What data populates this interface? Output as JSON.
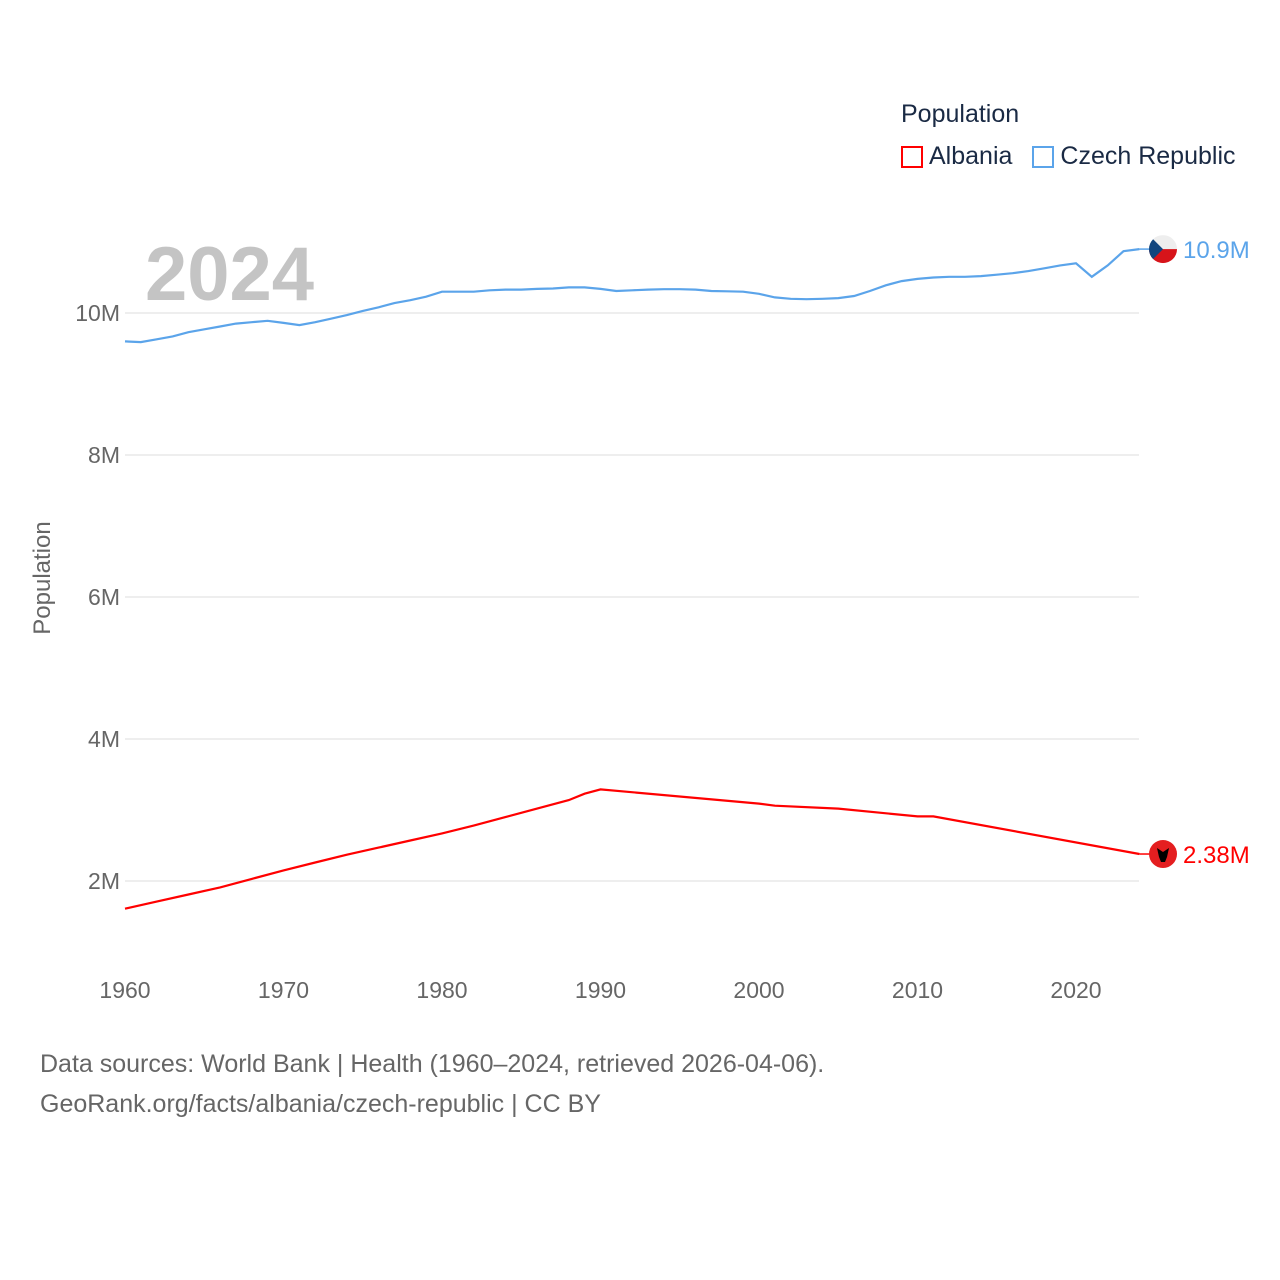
{
  "chart_data": {
    "type": "line",
    "title": "Population",
    "ylabel": "Population",
    "xlabel": "",
    "xlim": [
      1960,
      2024
    ],
    "ylim": [
      1220000,
      11000000
    ],
    "x_ticks": [
      1960,
      1970,
      1980,
      1990,
      2000,
      2010,
      2020
    ],
    "y_ticks": [
      2000000,
      4000000,
      6000000,
      8000000,
      10000000
    ],
    "y_tick_labels": [
      "2M",
      "4M",
      "6M",
      "8M",
      "10M"
    ],
    "grid": true,
    "legend_placement": "top-right",
    "year_label": "2024",
    "series": [
      {
        "name": "Albania",
        "color": "#ff0000",
        "end_label": "2.38M",
        "flag": "albania-flag",
        "x": [
          1960,
          1962,
          1964,
          1966,
          1968,
          1970,
          1972,
          1974,
          1976,
          1978,
          1980,
          1982,
          1984,
          1986,
          1988,
          1989,
          1990,
          2000,
          2001,
          2005,
          2010,
          2011,
          2024
        ],
        "values": [
          1610000,
          1710000,
          1810000,
          1910000,
          2030000,
          2150000,
          2260000,
          2370000,
          2470000,
          2570000,
          2670000,
          2780000,
          2900000,
          3020000,
          3140000,
          3230000,
          3290000,
          3090000,
          3060000,
          3020000,
          2910000,
          2910000,
          2380000
        ]
      },
      {
        "name": "Czech Republic",
        "color": "#5ba4ea",
        "end_label": "10.9M",
        "flag": "czech-flag",
        "x": [
          1960,
          1961,
          1962,
          1963,
          1964,
          1965,
          1966,
          1967,
          1968,
          1969,
          1970,
          1971,
          1972,
          1973,
          1974,
          1975,
          1976,
          1977,
          1978,
          1979,
          1980,
          1981,
          1982,
          1983,
          1984,
          1985,
          1986,
          1987,
          1988,
          1989,
          1990,
          1991,
          1992,
          1993,
          1994,
          1995,
          1996,
          1997,
          1998,
          1999,
          2000,
          2001,
          2002,
          2003,
          2004,
          2005,
          2006,
          2007,
          2008,
          2009,
          2010,
          2011,
          2012,
          2013,
          2014,
          2015,
          2016,
          2017,
          2018,
          2019,
          2020,
          2021,
          2022,
          2023,
          2024
        ],
        "values": [
          9600000,
          9590000,
          9630000,
          9670000,
          9730000,
          9770000,
          9810000,
          9850000,
          9870000,
          9890000,
          9860000,
          9830000,
          9870000,
          9920000,
          9970000,
          10030000,
          10080000,
          10140000,
          10180000,
          10230000,
          10300000,
          10300000,
          10300000,
          10320000,
          10330000,
          10330000,
          10340000,
          10345000,
          10360000,
          10360000,
          10340000,
          10310000,
          10320000,
          10330000,
          10335000,
          10335000,
          10330000,
          10310000,
          10305000,
          10300000,
          10270000,
          10220000,
          10200000,
          10195000,
          10200000,
          10210000,
          10240000,
          10310000,
          10390000,
          10450000,
          10480000,
          10500000,
          10510000,
          10510000,
          10520000,
          10540000,
          10560000,
          10590000,
          10630000,
          10670000,
          10700000,
          10510000,
          10670000,
          10870000,
          10900000
        ]
      }
    ]
  },
  "legend": {
    "title": "Population",
    "items": [
      "Albania",
      "Czech Republic"
    ]
  },
  "footer": {
    "line1": "Data sources: World Bank | Health (1960–2024, retrieved 2026-04-06).",
    "line2": "GeoRank.org/facts/albania/czech-republic | CC BY"
  }
}
